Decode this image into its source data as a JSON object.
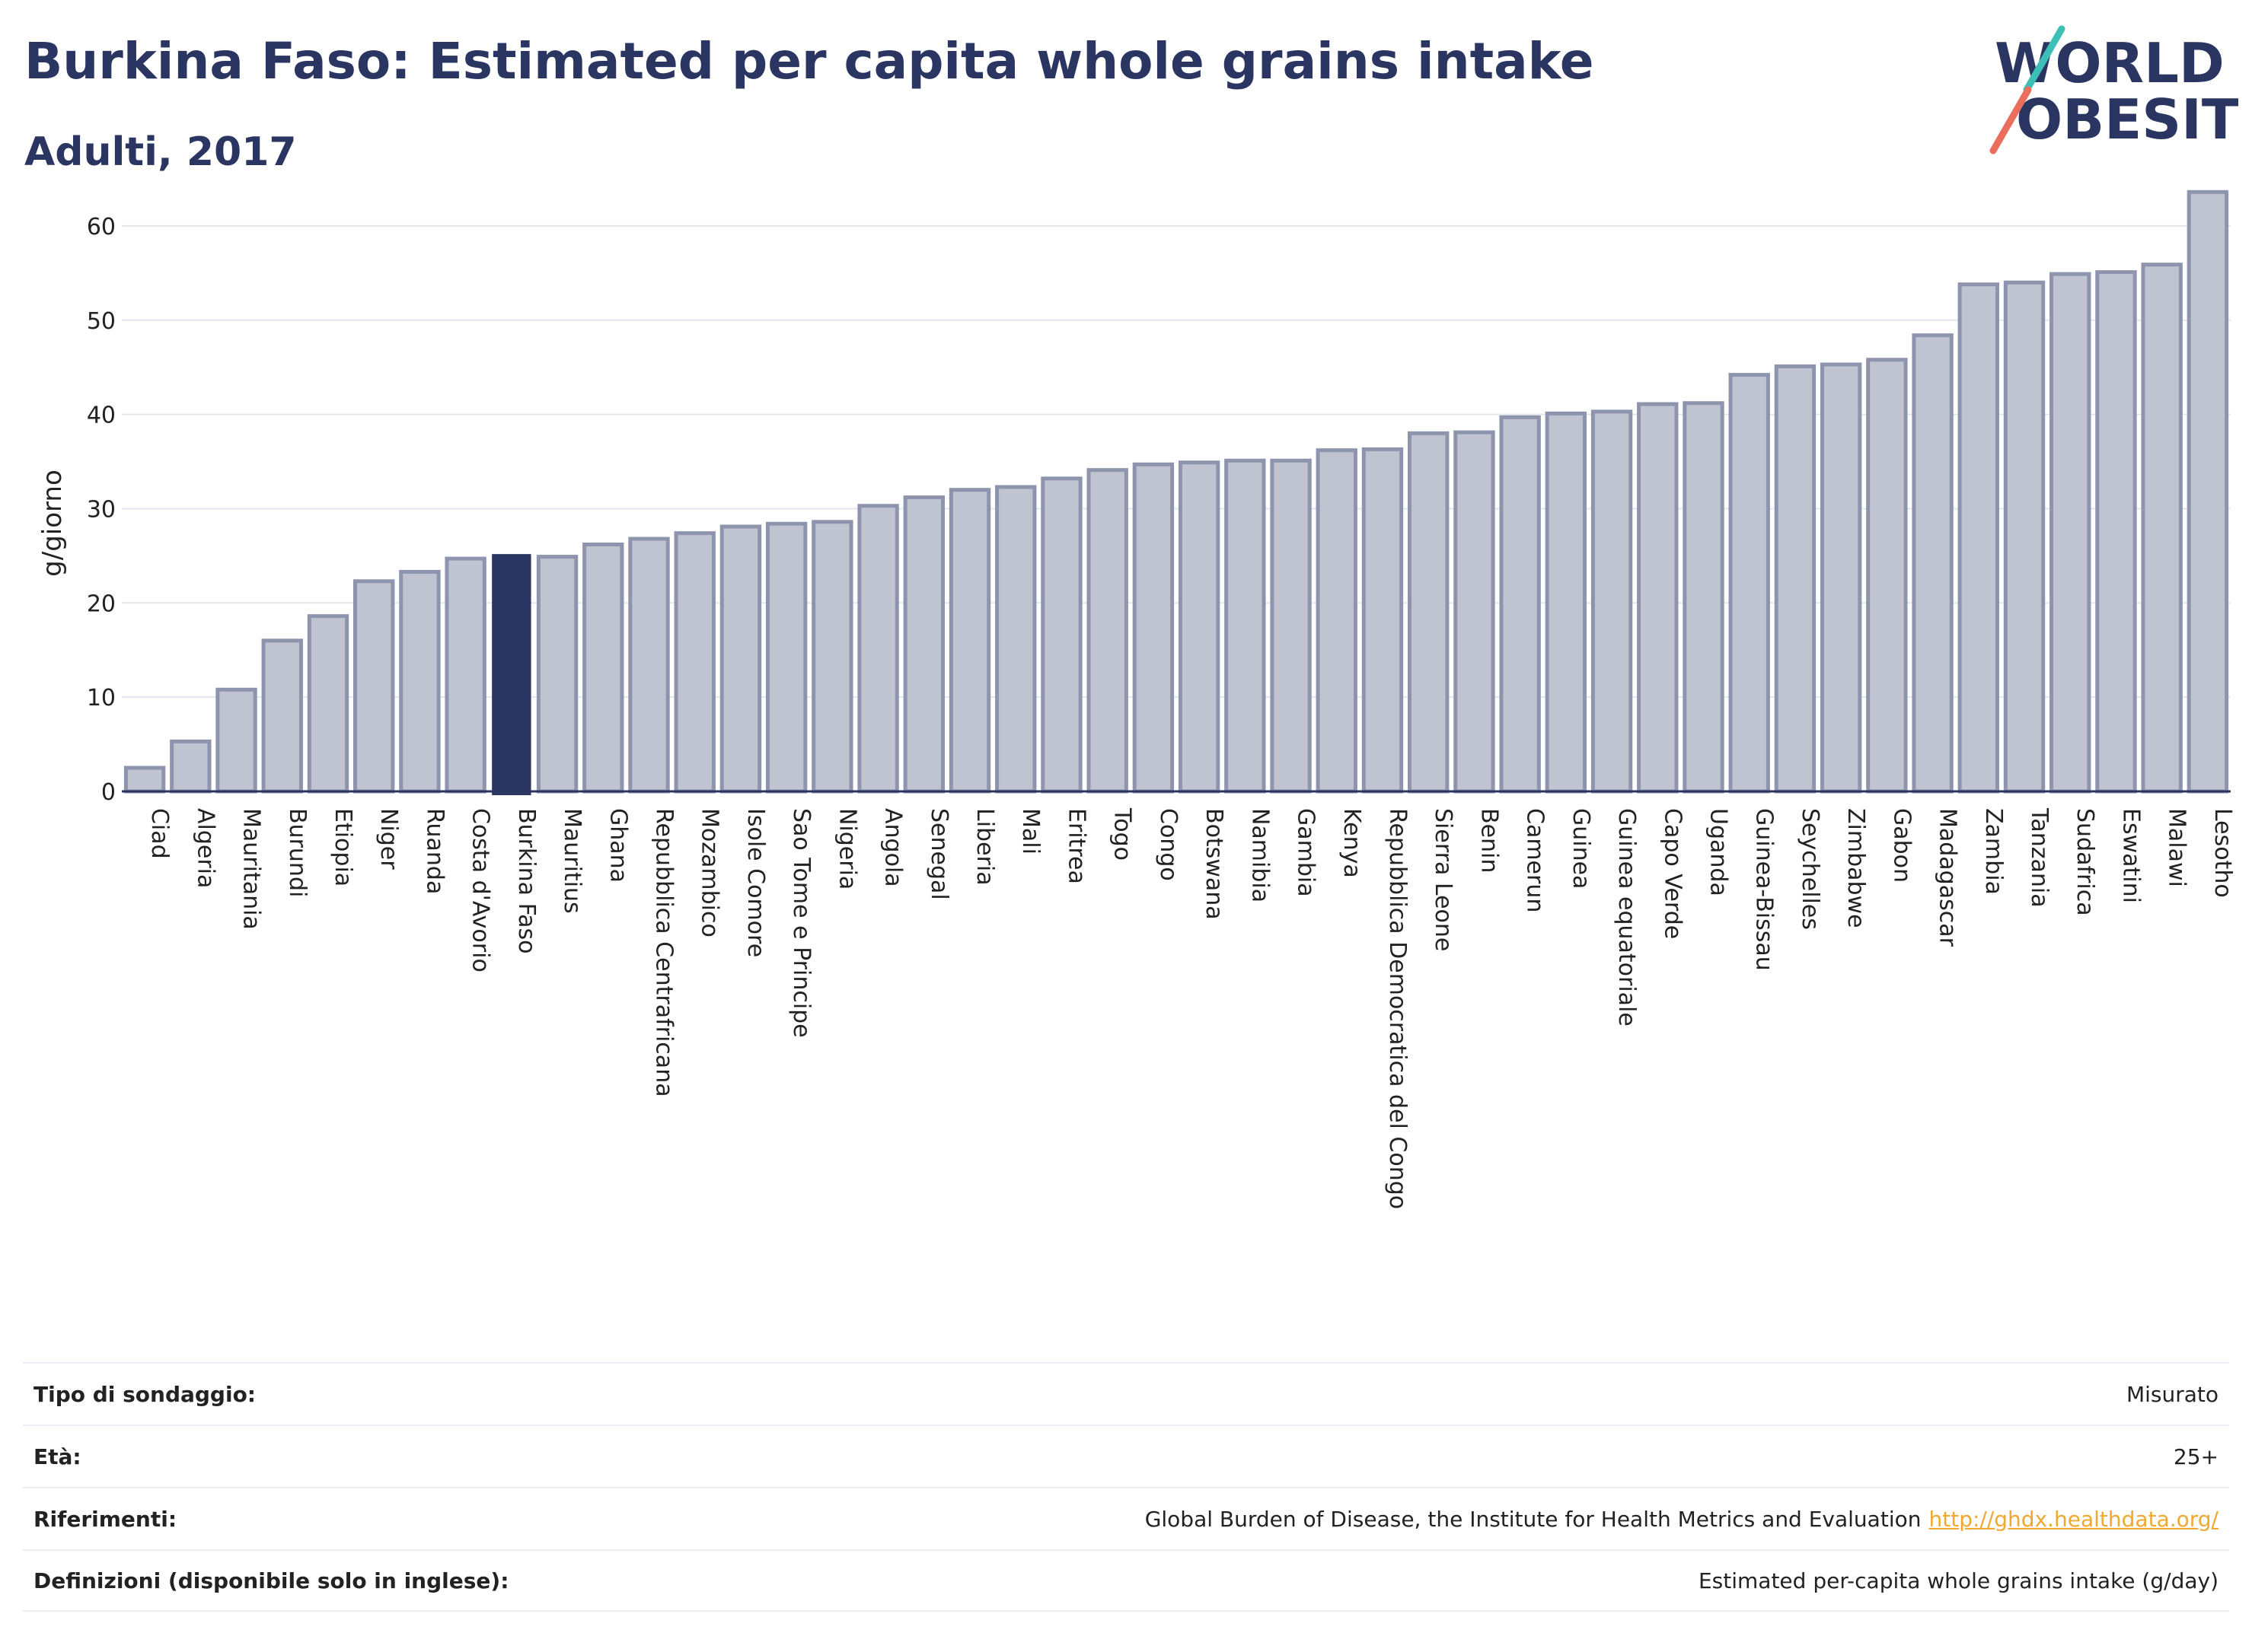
{
  "header": {
    "title": "Burkina Faso: Estimated per capita whole grains intake",
    "subtitle": "Adulti, 2017"
  },
  "logo": {
    "line1": "WORLD",
    "line2": "OBESITY"
  },
  "colors": {
    "bar": "#c0c4d1",
    "bar_border": "#8e94ad",
    "highlight": "#2b3561",
    "accent_teal": "#3dbfb8",
    "accent_coral": "#ea6d5d"
  },
  "chart_data": {
    "type": "bar",
    "title": "Burkina Faso: Estimated per capita whole grains intake",
    "subtitle": "Adulti, 2017",
    "xlabel": "",
    "ylabel": "g/giorno",
    "ylim": [
      0,
      65
    ],
    "yticks": [
      0,
      10,
      20,
      30,
      40,
      50,
      60
    ],
    "grid": true,
    "highlight": "Burkina Faso",
    "categories": [
      "Ciad",
      "Algeria",
      "Mauritania",
      "Burundi",
      "Etiopia",
      "Niger",
      "Ruanda",
      "Costa d'Avorio",
      "Burkina Faso",
      "Mauritius",
      "Ghana",
      "Repubblica Centrafricana",
      "Mozambico",
      "Isole Comore",
      "Sao Tome e Principe",
      "Nigeria",
      "Angola",
      "Senegal",
      "Liberia",
      "Mali",
      "Eritrea",
      "Togo",
      "Congo",
      "Botswana",
      "Namibia",
      "Gambia",
      "Kenya",
      "Repubblica Democratica del Congo",
      "Sierra Leone",
      "Benin",
      "Camerun",
      "Guinea",
      "Guinea equatoriale",
      "Capo Verde",
      "Uganda",
      "Guinea-Bissau",
      "Seychelles",
      "Zimbabwe",
      "Gabon",
      "Madagascar",
      "Zambia",
      "Tanzania",
      "Sudafrica",
      "Eswatini",
      "Malawi",
      "Lesotho"
    ],
    "values": [
      2.5,
      5.3,
      10.8,
      16.0,
      18.6,
      22.3,
      23.3,
      24.7,
      25.1,
      24.9,
      26.2,
      26.8,
      27.4,
      28.1,
      28.4,
      28.6,
      30.3,
      31.2,
      32.0,
      32.3,
      33.2,
      34.1,
      34.7,
      34.9,
      35.1,
      35.1,
      36.2,
      36.3,
      38.0,
      38.1,
      39.7,
      40.1,
      40.3,
      41.1,
      41.2,
      44.2,
      45.1,
      45.3,
      45.8,
      48.4,
      53.8,
      54.0,
      54.9,
      55.1,
      55.9,
      63.6
    ]
  },
  "info": {
    "rows": [
      {
        "label": "Tipo di sondaggio:",
        "value": "Misurato"
      },
      {
        "label": "Età:",
        "value": "25+"
      },
      {
        "label": "Riferimenti:",
        "value": "Global Burden of Disease, the Institute for Health Metrics and Evaluation",
        "link": "http://ghdx.healthdata.org/"
      },
      {
        "label": "Definizioni (disponibile solo in inglese):",
        "value": "Estimated per-capita whole grains intake (g/day)"
      }
    ]
  }
}
